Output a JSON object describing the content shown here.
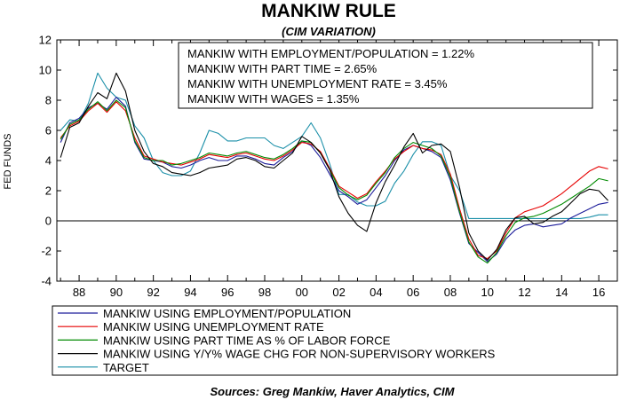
{
  "chart_data": {
    "type": "line",
    "title": "MANKIW RULE",
    "subtitle": "(CIM VARIATION)",
    "ylabel": "FED FUNDS",
    "xlabel": "",
    "xlim": [
      1986.8,
      2017.0
    ],
    "ylim": [
      -4,
      12
    ],
    "yticks": [
      -4,
      -2,
      0,
      2,
      4,
      6,
      8,
      10,
      12
    ],
    "xtick_labels": [
      "88",
      "90",
      "92",
      "94",
      "96",
      "98",
      "00",
      "02",
      "04",
      "06",
      "08",
      "10",
      "12",
      "14",
      "16"
    ],
    "xtick_years": [
      1988,
      1990,
      1992,
      1994,
      1996,
      1998,
      2000,
      2002,
      2004,
      2006,
      2008,
      2010,
      2012,
      2014,
      2016
    ],
    "grid": false,
    "zero_line": true,
    "annotation_lines": [
      "MANKIW WITH EMPLOYMENT/POPULATION = 1.22%",
      "MANKIW WITH PART TIME = 2.65%",
      "MANKIW WITH UNEMPLOYMENT RATE = 3.45%",
      "MANKIW WITH WAGES = 1.35%"
    ],
    "legend_placement": "bottom",
    "source": "Sources:  Greg Mankiw, Haver Analytics, CIM",
    "series": [
      {
        "name": "MANKIW USING EMPLOYMENT/POPULATION",
        "color": "#1c1c9a",
        "x": [
          1987.0,
          1987.5,
          1988.0,
          1988.5,
          1989.0,
          1989.5,
          1990.0,
          1990.5,
          1991.0,
          1991.5,
          1992.0,
          1992.5,
          1993.0,
          1993.5,
          1994.0,
          1994.5,
          1995.0,
          1995.5,
          1996.0,
          1996.5,
          1997.0,
          1997.5,
          1998.0,
          1998.5,
          1999.0,
          1999.5,
          2000.0,
          2000.5,
          2001.0,
          2001.5,
          2002.0,
          2002.5,
          2003.0,
          2003.5,
          2004.0,
          2004.5,
          2005.0,
          2005.5,
          2006.0,
          2006.5,
          2007.0,
          2007.5,
          2008.0,
          2008.5,
          2009.0,
          2009.5,
          2010.0,
          2010.5,
          2011.0,
          2011.5,
          2012.0,
          2012.5,
          2013.0,
          2013.5,
          2014.0,
          2014.5,
          2015.0,
          2015.5,
          2016.0,
          2016.5
        ],
        "y": [
          5.2,
          6.5,
          6.8,
          7.5,
          7.8,
          7.4,
          8.2,
          7.6,
          5.2,
          4.1,
          4.0,
          3.9,
          3.6,
          3.5,
          3.7,
          4.0,
          4.2,
          4.0,
          4.0,
          4.3,
          4.3,
          4.1,
          3.8,
          3.7,
          4.2,
          4.6,
          5.3,
          5.0,
          4.2,
          3.1,
          2.0,
          1.6,
          1.1,
          1.4,
          2.2,
          3.0,
          4.0,
          4.7,
          5.0,
          4.8,
          4.6,
          4.2,
          2.7,
          0.5,
          -1.5,
          -2.1,
          -2.7,
          -2.2,
          -1.2,
          -0.6,
          -0.3,
          -0.2,
          -0.4,
          -0.3,
          -0.2,
          0.2,
          0.5,
          0.8,
          1.1,
          1.22
        ]
      },
      {
        "name": "MANKIW USING UNEMPLOYMENT RATE",
        "color": "#e60000",
        "x": [
          1987.0,
          1987.5,
          1988.0,
          1988.5,
          1989.0,
          1989.5,
          1990.0,
          1990.5,
          1991.0,
          1991.5,
          1992.0,
          1992.5,
          1993.0,
          1993.5,
          1994.0,
          1994.5,
          1995.0,
          1995.5,
          1996.0,
          1996.5,
          1997.0,
          1997.5,
          1998.0,
          1998.5,
          1999.0,
          1999.5,
          2000.0,
          2000.5,
          2001.0,
          2001.5,
          2002.0,
          2002.5,
          2003.0,
          2003.5,
          2004.0,
          2004.5,
          2005.0,
          2005.5,
          2006.0,
          2006.5,
          2007.0,
          2007.5,
          2008.0,
          2008.5,
          2009.0,
          2009.5,
          2010.0,
          2010.5,
          2011.0,
          2011.5,
          2012.0,
          2012.5,
          2013.0,
          2013.5,
          2014.0,
          2014.5,
          2015.0,
          2015.5,
          2016.0,
          2016.5
        ],
        "y": [
          5.5,
          6.3,
          6.6,
          7.3,
          7.8,
          7.2,
          7.9,
          7.3,
          5.5,
          4.3,
          4.1,
          3.9,
          3.8,
          3.7,
          3.9,
          4.1,
          4.4,
          4.3,
          4.2,
          4.4,
          4.5,
          4.3,
          4.1,
          4.0,
          4.3,
          4.7,
          5.2,
          5.1,
          4.6,
          3.5,
          2.3,
          1.9,
          1.5,
          1.8,
          2.6,
          3.3,
          4.1,
          4.6,
          5.0,
          4.8,
          4.7,
          4.4,
          3.1,
          0.8,
          -1.2,
          -2.3,
          -2.5,
          -2.0,
          -0.8,
          0.2,
          0.6,
          0.8,
          1.0,
          1.4,
          1.8,
          2.3,
          2.8,
          3.3,
          3.6,
          3.45
        ]
      },
      {
        "name": "MANKIW USING PART TIME AS % OF LABOR FORCE",
        "color": "#008a00",
        "x": [
          1987.0,
          1987.5,
          1988.0,
          1988.5,
          1989.0,
          1989.5,
          1990.0,
          1990.5,
          1991.0,
          1991.5,
          1992.0,
          1992.5,
          1993.0,
          1993.5,
          1994.0,
          1994.5,
          1995.0,
          1995.5,
          1996.0,
          1996.5,
          1997.0,
          1997.5,
          1998.0,
          1998.5,
          1999.0,
          1999.5,
          2000.0,
          2000.5,
          2001.0,
          2001.5,
          2002.0,
          2002.5,
          2003.0,
          2003.5,
          2004.0,
          2004.5,
          2005.0,
          2005.5,
          2006.0,
          2006.5,
          2007.0,
          2007.5,
          2008.0,
          2008.5,
          2009.0,
          2009.5,
          2010.0,
          2010.5,
          2011.0,
          2011.5,
          2012.0,
          2012.5,
          2013.0,
          2013.5,
          2014.0,
          2014.5,
          2015.0,
          2015.5,
          2016.0,
          2016.5
        ],
        "y": [
          5.4,
          6.4,
          6.7,
          7.4,
          7.9,
          7.3,
          8.0,
          7.5,
          5.3,
          4.2,
          4.0,
          4.0,
          3.7,
          3.8,
          4.0,
          4.2,
          4.5,
          4.4,
          4.3,
          4.5,
          4.6,
          4.4,
          4.2,
          4.1,
          4.4,
          4.8,
          5.3,
          5.2,
          4.5,
          3.4,
          2.2,
          1.7,
          1.4,
          1.7,
          2.5,
          3.2,
          4.2,
          4.8,
          5.2,
          5.0,
          4.8,
          4.3,
          2.9,
          0.6,
          -1.4,
          -2.4,
          -2.8,
          -2.1,
          -1.0,
          -0.1,
          0.2,
          0.3,
          0.5,
          0.8,
          1.1,
          1.5,
          1.9,
          2.3,
          2.8,
          2.65
        ]
      },
      {
        "name": "MANKIW USING Y/Y% WAGE CHG FOR NON-SUPERVISORY WORKERS",
        "color": "#000000",
        "x": [
          1987.0,
          1987.5,
          1988.0,
          1988.5,
          1989.0,
          1989.5,
          1990.0,
          1990.5,
          1991.0,
          1991.5,
          1992.0,
          1992.5,
          1993.0,
          1993.5,
          1994.0,
          1994.5,
          1995.0,
          1995.5,
          1996.0,
          1996.5,
          1997.0,
          1997.5,
          1998.0,
          1998.5,
          1999.0,
          1999.5,
          2000.0,
          2000.5,
          2001.0,
          2001.5,
          2002.0,
          2002.5,
          2003.0,
          2003.5,
          2004.0,
          2004.5,
          2005.0,
          2005.5,
          2006.0,
          2006.5,
          2007.0,
          2007.5,
          2008.0,
          2008.5,
          2009.0,
          2009.5,
          2010.0,
          2010.5,
          2011.0,
          2011.5,
          2012.0,
          2012.5,
          2013.0,
          2013.5,
          2014.0,
          2014.5,
          2015.0,
          2015.5,
          2016.0,
          2016.5
        ],
        "y": [
          4.2,
          6.2,
          6.5,
          7.6,
          8.5,
          8.1,
          9.8,
          8.6,
          6.0,
          4.6,
          3.8,
          3.6,
          3.2,
          3.1,
          3.0,
          3.2,
          3.5,
          3.6,
          3.7,
          4.1,
          4.2,
          4.0,
          3.6,
          3.5,
          4.0,
          4.5,
          5.6,
          5.2,
          4.5,
          3.4,
          1.6,
          0.5,
          -0.3,
          -0.7,
          1.2,
          2.6,
          3.7,
          4.9,
          5.8,
          4.5,
          5.0,
          5.1,
          4.6,
          2.2,
          -0.8,
          -2.0,
          -2.6,
          -1.9,
          -0.6,
          0.2,
          0.3,
          -0.2,
          -0.1,
          0.3,
          0.6,
          1.2,
          1.8,
          2.1,
          2.0,
          1.35
        ]
      },
      {
        "name": "TARGET",
        "color": "#1a8fa8",
        "x": [
          1987.0,
          1987.5,
          1988.0,
          1988.5,
          1989.0,
          1989.5,
          1990.0,
          1990.5,
          1991.0,
          1991.5,
          1992.0,
          1992.5,
          1993.0,
          1993.5,
          1994.0,
          1994.5,
          1995.0,
          1995.5,
          1996.0,
          1996.5,
          1997.0,
          1997.5,
          1998.0,
          1998.5,
          1999.0,
          1999.5,
          2000.0,
          2000.5,
          2001.0,
          2001.5,
          2002.0,
          2002.5,
          2003.0,
          2003.5,
          2004.0,
          2004.5,
          2005.0,
          2005.5,
          2006.0,
          2006.5,
          2007.0,
          2007.5,
          2008.0,
          2008.5,
          2009.0,
          2009.5,
          2010.0,
          2010.5,
          2011.0,
          2011.5,
          2012.0,
          2012.5,
          2013.0,
          2013.5,
          2014.0,
          2014.5,
          2015.0,
          2015.5,
          2016.0,
          2016.5
        ],
        "y": [
          6.0,
          6.7,
          6.6,
          7.8,
          9.8,
          8.8,
          8.2,
          8.0,
          6.3,
          5.5,
          4.0,
          3.2,
          3.0,
          3.0,
          3.3,
          4.5,
          6.0,
          5.8,
          5.3,
          5.3,
          5.5,
          5.5,
          5.5,
          5.0,
          4.8,
          5.2,
          5.6,
          6.5,
          5.5,
          3.8,
          1.75,
          1.75,
          1.25,
          1.0,
          1.0,
          1.3,
          2.5,
          3.3,
          4.4,
          5.25,
          5.25,
          5.0,
          3.0,
          2.0,
          0.15,
          0.15,
          0.15,
          0.15,
          0.15,
          0.15,
          0.15,
          0.15,
          0.15,
          0.15,
          0.15,
          0.15,
          0.15,
          0.25,
          0.4,
          0.4
        ]
      }
    ]
  }
}
